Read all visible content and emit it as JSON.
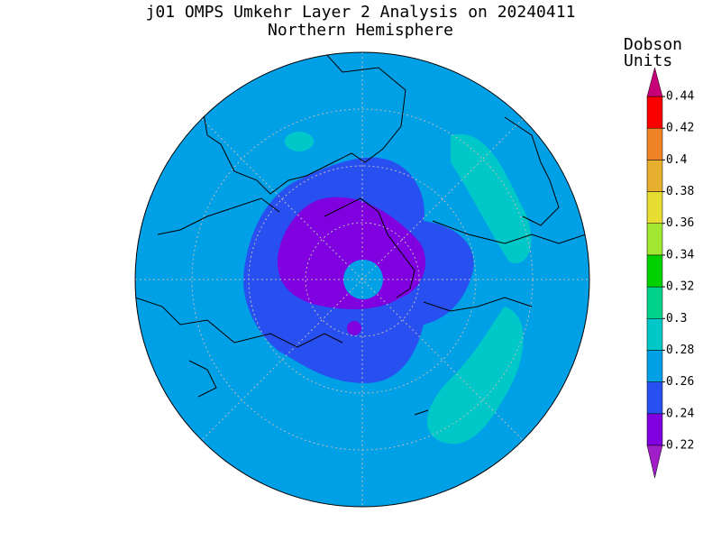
{
  "title": "j01 OMPS Umkehr Layer 2 Analysis on 20240411",
  "subtitle": "Northern Hemisphere",
  "colorbar": {
    "label_lines": [
      "Dobson",
      "Units"
    ],
    "ticks": [
      0.22,
      0.24,
      0.26,
      0.28,
      0.3,
      0.32,
      0.34,
      0.36,
      0.38,
      0.4,
      0.42,
      0.44
    ],
    "colors": [
      "#a01ec8",
      "#8000e0",
      "#2850f0",
      "#00a0e6",
      "#00c8c8",
      "#00d28c",
      "#00d200",
      "#a0e632",
      "#e6dc32",
      "#e6af2d",
      "#f08228",
      "#fa0000",
      "#c80078"
    ]
  }
}
